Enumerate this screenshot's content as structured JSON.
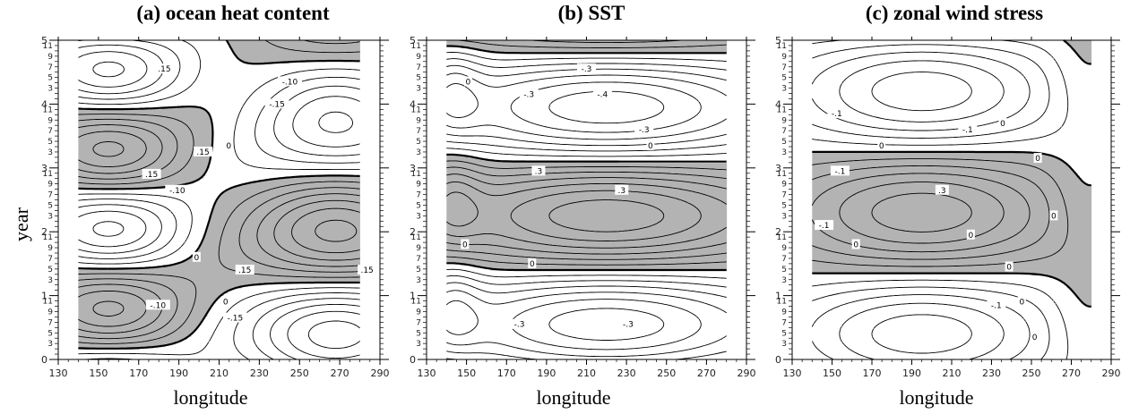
{
  "figure": {
    "ylabel": "year",
    "xlabel": "longitude",
    "shade_color": "#b3b3b3",
    "line_color": "#000000"
  },
  "chart_data": [
    {
      "type": "heatmap",
      "title": "(a) ocean heat content",
      "xlabel": "longitude",
      "ylabel": "year",
      "xlim": [
        130,
        290
      ],
      "ylim": [
        0,
        5
      ],
      "x_ticks": [
        130,
        150,
        170,
        190,
        210,
        230,
        250,
        270,
        290
      ],
      "y_major_ticks": [
        0,
        1,
        2,
        3,
        4,
        5
      ],
      "y_minor_ticks": [
        3,
        5,
        7,
        9,
        11
      ],
      "data_x_range": [
        140,
        280
      ],
      "contour_interval": 0.05,
      "contour_labels": [
        ".15",
        "-.10",
        "-.15",
        "-.10",
        ".15",
        ".15",
        ".15",
        ".15",
        "-.10",
        "-.15",
        "0",
        "0",
        "0"
      ],
      "positive_shaded": true,
      "extrema": [
        {
          "lon": 155,
          "year": 4.7,
          "sign": "+"
        },
        {
          "lon": 270,
          "year": 3.8,
          "sign": "-"
        },
        {
          "lon": 155,
          "year": 3.25,
          "sign": "-"
        },
        {
          "lon": 265,
          "year": 2.1,
          "sign": "+"
        },
        {
          "lon": 155,
          "year": 0.75,
          "sign": "+"
        },
        {
          "lon": 270,
          "year": 0.15,
          "sign": "-"
        }
      ]
    },
    {
      "type": "heatmap",
      "title": "(b) SST",
      "xlabel": "longitude",
      "ylabel": "",
      "xlim": [
        130,
        290
      ],
      "ylim": [
        0,
        5
      ],
      "x_ticks": [
        130,
        150,
        170,
        190,
        210,
        230,
        250,
        270,
        290
      ],
      "y_major_ticks": [
        0,
        1,
        2,
        3,
        4,
        5
      ],
      "y_minor_ticks": [
        3,
        5,
        7,
        9,
        11
      ],
      "data_x_range": [
        140,
        280
      ],
      "contour_interval": 0.1,
      "contour_labels": [
        "-.3",
        "-.3",
        "-.4",
        "-.3",
        ".3",
        ".3",
        "-.3",
        "-.3",
        "0",
        "0",
        "0",
        "0"
      ],
      "positive_shaded": true,
      "extrema": [
        {
          "lon": 225,
          "year": 4.5,
          "sign": "-"
        },
        {
          "lon": 220,
          "year": 2.25,
          "sign": "+"
        },
        {
          "lon": 220,
          "year": 0.4,
          "sign": "-"
        }
      ]
    },
    {
      "type": "heatmap",
      "title": "(c) zonal wind stress",
      "xlabel": "longitude",
      "ylabel": "",
      "xlim": [
        130,
        290
      ],
      "ylim": [
        0,
        5
      ],
      "x_ticks": [
        130,
        150,
        170,
        190,
        210,
        230,
        250,
        270,
        290
      ],
      "y_major_ticks": [
        0,
        1,
        2,
        3,
        4,
        5
      ],
      "y_minor_ticks": [
        3,
        5,
        7,
        9,
        11
      ],
      "data_x_range": [
        140,
        280
      ],
      "contour_interval": 0.1,
      "contour_labels": [
        "-.1",
        "-.1",
        "-.1",
        ".3",
        "-.1",
        "-.1",
        "0",
        "0",
        "0",
        "0",
        "0",
        "0",
        "0",
        "0",
        "0"
      ],
      "positive_shaded": true,
      "extrema": [
        {
          "lon": 195,
          "year": 2.3,
          "sign": "+"
        },
        {
          "lon": 205,
          "year": 4.3,
          "sign": "-"
        },
        {
          "lon": 180,
          "year": 0.4,
          "sign": "-"
        }
      ]
    }
  ]
}
